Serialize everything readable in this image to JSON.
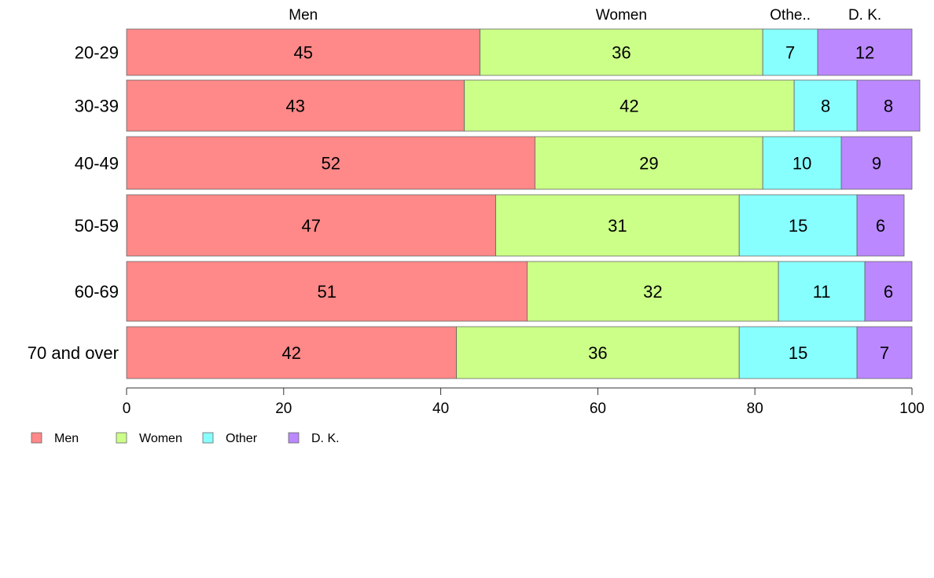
{
  "chart_data": {
    "type": "bar",
    "orientation": "horizontal",
    "stacked": true,
    "categories": [
      "20-29",
      "30-39",
      "40-49",
      "50-59",
      "60-69",
      "70 and over"
    ],
    "series": [
      {
        "name": "Men",
        "values": [
          45,
          43,
          52,
          47,
          51,
          42
        ],
        "color": "#ff8888"
      },
      {
        "name": "Women",
        "values": [
          36,
          42,
          29,
          31,
          32,
          36
        ],
        "color": "#ccff88"
      },
      {
        "name": "Other",
        "values": [
          7,
          8,
          10,
          15,
          11,
          15
        ],
        "color": "#88ffff"
      },
      {
        "name": "D. K.",
        "values": [
          12,
          8,
          9,
          6,
          6,
          7
        ],
        "color": "#bb88ff"
      }
    ],
    "column_labels": [
      "Men",
      "Women",
      "Othe..",
      "D. K."
    ],
    "xlim": [
      0,
      100
    ],
    "xticks": [
      "0",
      "20",
      "40",
      "60",
      "80",
      "100"
    ],
    "title": "",
    "xlabel": "",
    "ylabel": "",
    "grid": false,
    "legend_position": "bottom-left"
  }
}
